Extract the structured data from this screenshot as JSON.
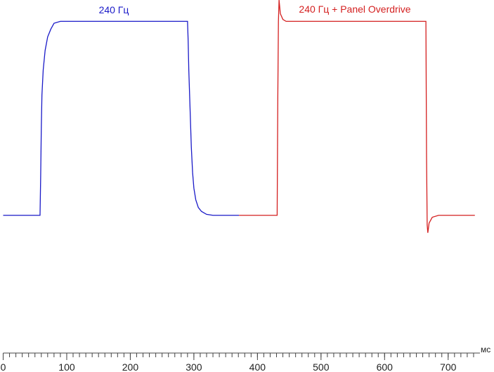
{
  "chart_data": {
    "type": "line",
    "x_unit_label": "мс",
    "series": [
      {
        "name": "240 Гц",
        "color": "#1a1ac8",
        "x": [
          0,
          58,
          59,
          60,
          61,
          63,
          66,
          70,
          75,
          80,
          90,
          290,
          291,
          292,
          294,
          296,
          298,
          300,
          303,
          307,
          312,
          320,
          330,
          371
        ],
        "values": [
          0,
          0,
          20,
          45,
          62,
          75,
          85,
          92,
          96,
          99,
          100,
          100,
          90,
          75,
          55,
          35,
          22,
          14,
          8,
          4,
          2,
          0.5,
          0,
          0
        ]
      },
      {
        "name": "240 Гц + Panel Overdrive",
        "color": "#d42020",
        "x": [
          371,
          431,
          432,
          433,
          434,
          436,
          440,
          445,
          665,
          666,
          667,
          668,
          670,
          675,
          685,
          742
        ],
        "values": [
          0,
          0,
          60,
          100,
          111,
          104,
          101,
          100,
          100,
          30,
          -5,
          -9,
          -4,
          -1,
          0,
          0
        ]
      }
    ],
    "xlim": [
      0,
      750
    ],
    "ylim": [
      -71,
      111
    ],
    "xticks": [
      0,
      100,
      200,
      300,
      400,
      500,
      600,
      700
    ],
    "xticks_minor": [
      0,
      10,
      20,
      30,
      40,
      50,
      60,
      70,
      80,
      90,
      100,
      110,
      120,
      130,
      140,
      150,
      160,
      170,
      180,
      190,
      200,
      210,
      220,
      230,
      240,
      250,
      260,
      270,
      280,
      290,
      300,
      310,
      320,
      330,
      340,
      350,
      360,
      370,
      380,
      390,
      400,
      410,
      420,
      430,
      440,
      450,
      460,
      470,
      480,
      490,
      500,
      510,
      520,
      530,
      540,
      550,
      560,
      570,
      580,
      590,
      600,
      610,
      620,
      630,
      640,
      650,
      660,
      670,
      680,
      690,
      700,
      710,
      720,
      730,
      740
    ]
  }
}
